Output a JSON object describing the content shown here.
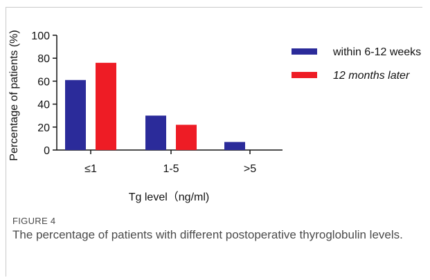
{
  "chart_data": {
    "type": "bar",
    "title": "",
    "xlabel": "Tg level（ng/ml)",
    "ylabel": "Percentage of patients (%)",
    "categories": [
      "≤1",
      "1-5",
      ">5"
    ],
    "ylim": [
      0,
      100
    ],
    "yticks": [
      0,
      20,
      40,
      60,
      80,
      100
    ],
    "grid": false,
    "legend_position": "top-right",
    "series": [
      {
        "name": "within 6-12 weeks",
        "color": "#2b2b9a",
        "values": [
          61,
          30,
          7
        ]
      },
      {
        "name": "12 months later",
        "color": "#ee1c25",
        "values": [
          76,
          22,
          0
        ]
      }
    ]
  },
  "caption": {
    "label": "FIGURE 4",
    "text": "The percentage of patients with different postoperative thyroglobulin levels."
  }
}
